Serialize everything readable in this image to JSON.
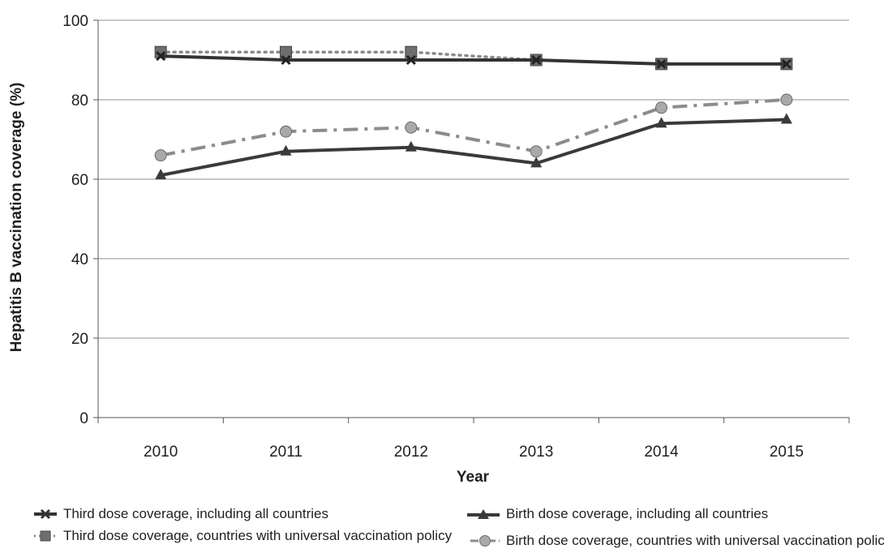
{
  "chart_data": {
    "type": "line",
    "title": "",
    "xlabel": "Year",
    "ylabel": "Hepatitis B vaccination coverage (%)",
    "categories": [
      "2010",
      "2011",
      "2012",
      "2013",
      "2014",
      "2015"
    ],
    "ylim": [
      0,
      100
    ],
    "yticks": [
      "0",
      "20",
      "40",
      "60",
      "80",
      "100"
    ],
    "grid": true,
    "legend_position": "bottom",
    "series": [
      {
        "name": "Third dose coverage, including all countries",
        "values": [
          91,
          90,
          90,
          90,
          89,
          89
        ],
        "color": "#333333",
        "dash": "solid",
        "marker": "x"
      },
      {
        "name": "Third dose coverage, countries with universal vaccination policy",
        "values": [
          92,
          92,
          92,
          90,
          89,
          89
        ],
        "color": "#8a8a8a",
        "dash": "dotted",
        "marker": "square"
      },
      {
        "name": "Birth dose coverage, including all countries",
        "values": [
          61,
          67,
          68,
          64,
          74,
          75
        ],
        "color": "#3a3a3a",
        "dash": "solid",
        "marker": "triangle"
      },
      {
        "name": "Birth dose coverage, countries with universal vaccination policy",
        "values": [
          66,
          72,
          73,
          67,
          78,
          80
        ],
        "color": "#8c8c8c",
        "dash": "dashdot",
        "marker": "circle"
      }
    ]
  }
}
